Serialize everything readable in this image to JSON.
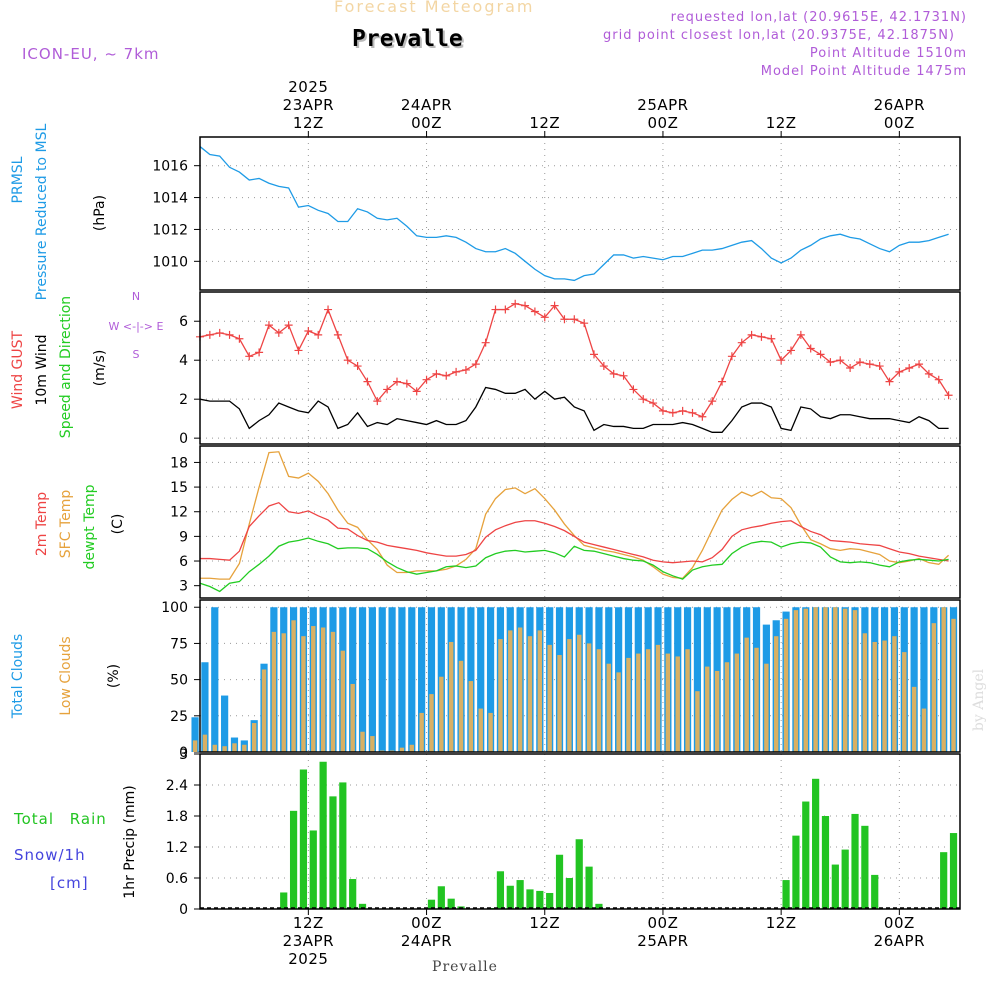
{
  "header": {
    "subtitle": "Forecast Meteogram",
    "title": "Prevalle",
    "model": "ICON-EU, ~ 7km",
    "requested": "requested lon,lat (20.9615E, 42.1731N)",
    "grid_point": "grid point closest lon,lat (20.9375E, 42.1875N)",
    "point_altitude": "Point Altitude 1510m",
    "model_altitude": "Model Point Altitude 1475m"
  },
  "footer": {
    "station": "Prevalle",
    "credit": "by Angel"
  },
  "colors": {
    "pressure": "#1e9be6",
    "gust": "#ee4444",
    "wind": "#000000",
    "temp": "#ee4444",
    "sfc": "#e6a23c",
    "dew": "#22cc22",
    "clouds": "#1e9be6",
    "low": "#d8b064",
    "rain": "#22c422",
    "snow": "#4444dd",
    "meta": "#b05cd8",
    "grid": "#999999"
  },
  "chart_data": [
    {
      "id": "pressure",
      "type": "line",
      "ylabel": [
        "PRMSL",
        "Pressure Reduced to MSL",
        "(hPa)"
      ],
      "ylim": [
        1008.2,
        1017.8
      ],
      "yticks": [
        1010,
        1012,
        1014,
        1016
      ],
      "x_start_hour": 1,
      "series": [
        {
          "values": [
            1017.2,
            1016.7,
            1016.6,
            1015.9,
            1015.6,
            1015.1,
            1015.2,
            1014.9,
            1014.7,
            1014.6,
            1013.4,
            1013.5,
            1013.2,
            1013.0,
            1012.5,
            1012.5,
            1013.3,
            1013.1,
            1012.7,
            1012.6,
            1012.7,
            1012.2,
            1011.6,
            1011.5,
            1011.5,
            1011.6,
            1011.5,
            1011.2,
            1010.8,
            1010.6,
            1010.6,
            1010.8,
            1010.5,
            1010.0,
            1009.5,
            1009.1,
            1008.9,
            1008.9,
            1008.8,
            1009.1,
            1009.2,
            1009.8,
            1010.4,
            1010.4,
            1010.2,
            1010.3,
            1010.2,
            1010.1,
            1010.3,
            1010.3,
            1010.5,
            1010.7,
            1010.7,
            1010.8,
            1011.0,
            1011.2,
            1011.3,
            1010.8,
            1010.2,
            1009.9,
            1010.2,
            1010.7,
            1011.0,
            1011.4,
            1011.6,
            1011.7,
            1011.5,
            1011.4,
            1011.1,
            1010.8,
            1010.6,
            1011.0,
            1011.2,
            1011.2,
            1011.3,
            1011.5,
            1011.7
          ]
        }
      ]
    },
    {
      "id": "wind",
      "type": "line",
      "ylabel": [
        "Wind GUST",
        "10m Wind",
        "Speed and Direction",
        "(m/s)"
      ],
      "compass": [
        "N",
        "W <-|-> E",
        "S"
      ],
      "ylim": [
        -0.3,
        7.5
      ],
      "yticks": [
        0,
        2,
        4,
        6
      ],
      "x_start_hour": 1,
      "series": [
        {
          "name": "Wind GUST",
          "values": [
            5.2,
            5.3,
            5.4,
            5.3,
            5.1,
            4.2,
            4.4,
            5.8,
            5.4,
            5.8,
            4.5,
            5.5,
            5.3,
            6.6,
            5.3,
            4.0,
            3.7,
            2.9,
            1.9,
            2.5,
            2.9,
            2.8,
            2.4,
            3.0,
            3.3,
            3.2,
            3.4,
            3.5,
            3.8,
            4.9,
            6.6,
            6.6,
            6.9,
            6.8,
            6.5,
            6.2,
            6.8,
            6.1,
            6.1,
            5.9,
            4.3,
            3.7,
            3.3,
            3.2,
            2.5,
            2.0,
            1.8,
            1.4,
            1.3,
            1.4,
            1.3,
            1.1,
            1.9,
            2.9,
            4.2,
            4.9,
            5.3,
            5.2,
            5.1,
            4.0,
            4.5,
            5.3,
            4.6,
            4.3,
            3.9,
            4.0,
            3.6,
            3.9,
            3.8,
            3.7,
            2.9,
            3.4,
            3.6,
            3.8,
            3.3,
            3.0,
            2.2
          ]
        },
        {
          "name": "10m Wind",
          "values": [
            2.0,
            1.9,
            1.9,
            1.9,
            1.5,
            0.5,
            0.9,
            1.2,
            1.8,
            1.6,
            1.4,
            1.3,
            1.9,
            1.6,
            0.5,
            0.7,
            1.3,
            0.6,
            0.8,
            0.7,
            1.0,
            0.9,
            0.8,
            0.7,
            0.9,
            0.7,
            0.7,
            0.9,
            1.6,
            2.6,
            2.5,
            2.3,
            2.3,
            2.5,
            2.0,
            2.4,
            2.0,
            2.1,
            1.6,
            1.4,
            0.4,
            0.7,
            0.6,
            0.6,
            0.5,
            0.5,
            0.7,
            0.7,
            0.7,
            0.8,
            0.7,
            0.5,
            0.3,
            0.3,
            0.9,
            1.6,
            1.8,
            1.8,
            1.6,
            0.5,
            0.4,
            1.6,
            1.5,
            1.1,
            1.0,
            1.2,
            1.2,
            1.1,
            1.0,
            1.0,
            1.0,
            0.9,
            0.8,
            1.1,
            0.9,
            0.5,
            0.5
          ]
        }
      ]
    },
    {
      "id": "temperature",
      "type": "line",
      "ylabel": [
        "2m Temp",
        "SFC Temp",
        "dewpt Temp",
        "(C)"
      ],
      "ylim": [
        1.5,
        20.0
      ],
      "yticks": [
        3,
        6,
        9,
        12,
        15,
        18
      ],
      "x_start_hour": 1,
      "series": [
        {
          "name": "2m Temp",
          "values": [
            6.3,
            6.3,
            6.2,
            6.1,
            7.2,
            10.2,
            11.5,
            12.7,
            13.1,
            12.0,
            11.8,
            12.1,
            11.5,
            11.0,
            10.0,
            9.9,
            9.1,
            8.5,
            8.3,
            7.9,
            7.7,
            7.5,
            7.3,
            7.0,
            6.8,
            6.6,
            6.6,
            6.8,
            7.3,
            8.9,
            9.8,
            10.3,
            10.7,
            10.9,
            10.9,
            10.6,
            10.2,
            9.7,
            9.0,
            8.3,
            8.0,
            7.7,
            7.4,
            7.1,
            6.8,
            6.5,
            6.1,
            5.9,
            5.8,
            5.9,
            6.0,
            5.9,
            6.4,
            7.4,
            9.0,
            9.8,
            10.1,
            10.3,
            10.6,
            10.8,
            10.9,
            10.2,
            9.6,
            9.2,
            8.5,
            8.4,
            8.3,
            8.1,
            8.0,
            7.9,
            7.5,
            7.1,
            6.9,
            6.6,
            6.4,
            6.2,
            6.0
          ]
        },
        {
          "name": "SFC Temp",
          "values": [
            3.9,
            3.9,
            3.8,
            3.8,
            5.7,
            10.5,
            15.0,
            19.2,
            19.3,
            16.3,
            16.1,
            16.7,
            15.7,
            14.2,
            12.2,
            10.6,
            10.1,
            8.6,
            7.4,
            5.5,
            4.6,
            4.6,
            4.8,
            4.8,
            4.8,
            5.0,
            5.4,
            6.2,
            7.5,
            11.7,
            13.6,
            14.7,
            14.9,
            14.2,
            14.8,
            13.6,
            12.2,
            10.5,
            9.1,
            7.9,
            7.6,
            7.3,
            7.1,
            6.8,
            6.5,
            6.1,
            5.3,
            4.4,
            4.0,
            3.9,
            5.2,
            7.3,
            9.8,
            12.2,
            13.5,
            14.4,
            13.9,
            14.5,
            13.7,
            13.6,
            12.5,
            10.4,
            8.6,
            8.1,
            7.5,
            7.3,
            7.5,
            7.4,
            7.1,
            6.8,
            6.0,
            5.8,
            6.0,
            6.3,
            5.8,
            5.6,
            6.7
          ]
        },
        {
          "name": "dewpt Temp",
          "values": [
            3.3,
            2.9,
            2.3,
            3.3,
            3.5,
            4.7,
            5.6,
            6.6,
            7.8,
            8.3,
            8.5,
            8.8,
            8.4,
            8.1,
            7.5,
            7.6,
            7.6,
            7.5,
            6.8,
            5.9,
            5.2,
            4.7,
            4.4,
            4.6,
            4.8,
            5.3,
            5.4,
            5.2,
            5.4,
            6.4,
            6.9,
            7.2,
            7.3,
            7.1,
            7.2,
            7.3,
            7.0,
            6.5,
            7.8,
            7.3,
            7.2,
            6.9,
            6.6,
            6.3,
            6.1,
            6.0,
            5.5,
            4.7,
            4.2,
            3.8,
            4.9,
            5.3,
            5.5,
            5.6,
            6.9,
            7.7,
            8.2,
            8.4,
            8.3,
            7.7,
            8.1,
            8.3,
            8.2,
            7.7,
            6.5,
            5.9,
            5.8,
            5.9,
            5.8,
            5.5,
            5.3,
            5.9,
            6.1,
            6.2,
            6.1,
            6.0,
            6.2
          ]
        }
      ]
    },
    {
      "id": "clouds",
      "type": "bar",
      "ylabel": [
        "Total Clouds",
        "Low Clouds",
        "(%)"
      ],
      "ylim": [
        0,
        105
      ],
      "yticks": [
        0,
        25,
        50,
        75,
        100
      ],
      "x_start_hour": 0,
      "series": [
        {
          "name": "Total Clouds",
          "values": [
            24,
            62,
            100,
            39,
            10,
            8,
            22,
            61,
            100,
            100,
            100,
            100,
            100,
            100,
            100,
            100,
            100,
            100,
            100,
            100,
            100,
            100,
            100,
            100,
            100,
            100,
            100,
            100,
            100,
            100,
            100,
            100,
            100,
            100,
            100,
            100,
            100,
            100,
            100,
            100,
            100,
            100,
            100,
            100,
            100,
            100,
            100,
            100,
            100,
            100,
            100,
            100,
            100,
            100,
            100,
            100,
            100,
            100,
            88,
            91,
            97,
            100,
            100,
            100,
            100,
            100,
            100,
            100,
            100,
            100,
            100,
            100,
            100,
            100,
            100,
            100,
            100,
            100
          ]
        },
        {
          "name": "Low Clouds",
          "values": [
            8,
            12,
            5,
            4,
            6,
            5,
            20,
            57,
            83,
            82,
            91,
            80,
            87,
            86,
            83,
            70,
            47,
            14,
            11,
            1,
            1,
            3,
            5,
            27,
            40,
            52,
            76,
            63,
            49,
            30,
            27,
            78,
            84,
            86,
            80,
            84,
            74,
            67,
            78,
            81,
            75,
            71,
            61,
            55,
            65,
            68,
            71,
            74,
            68,
            66,
            71,
            42,
            59,
            56,
            62,
            68,
            79,
            72,
            61,
            80,
            92,
            98,
            99,
            100,
            100,
            100,
            99,
            98,
            82,
            76,
            77,
            80,
            69,
            45,
            30,
            89,
            100,
            92
          ]
        }
      ]
    },
    {
      "id": "precip",
      "type": "bar",
      "ylabel": [
        "1hr Precip (mm)"
      ],
      "legend": [
        "Total Rain",
        "Snow/1h",
        "[cm]"
      ],
      "ylim": [
        0,
        3
      ],
      "yticks": [
        0,
        0.6,
        1.2,
        1.8,
        2.4,
        3
      ],
      "x_start_hour": 0,
      "series": [
        {
          "name": "Total Rain",
          "values": [
            0,
            0,
            0,
            0,
            0,
            0,
            0,
            0,
            0,
            0.32,
            1.9,
            2.7,
            1.52,
            2.85,
            2.18,
            2.45,
            0.58,
            0.1,
            0,
            0,
            0,
            0,
            0,
            0,
            0.18,
            0.44,
            0.2,
            0.05,
            0,
            0,
            0.02,
            0.73,
            0.45,
            0.56,
            0.38,
            0.35,
            0.31,
            1.05,
            0.6,
            1.35,
            0.82,
            0.1,
            0,
            0,
            0,
            0,
            0,
            0,
            0,
            0,
            0,
            0,
            0,
            0,
            0,
            0,
            0,
            0,
            0,
            0,
            0.56,
            1.42,
            2.08,
            2.52,
            1.8,
            0.86,
            1.15,
            1.84,
            1.61,
            0.66,
            0,
            0,
            0,
            0,
            0,
            0,
            1.1,
            1.47
          ]
        }
      ]
    }
  ],
  "time_axis": {
    "top": [
      {
        "hour": 12,
        "lines": [
          "2025",
          "23APR",
          "12Z"
        ]
      },
      {
        "hour": 24,
        "lines": [
          "24APR",
          "00Z"
        ]
      },
      {
        "hour": 36,
        "lines": [
          "12Z"
        ]
      },
      {
        "hour": 48,
        "lines": [
          "25APR",
          "00Z"
        ]
      },
      {
        "hour": 60,
        "lines": [
          "12Z"
        ]
      },
      {
        "hour": 72,
        "lines": [
          "26APR",
          "00Z"
        ]
      }
    ],
    "bottom": [
      {
        "hour": 12,
        "lines": [
          "12Z",
          "23APR",
          "2025"
        ]
      },
      {
        "hour": 24,
        "lines": [
          "00Z",
          "24APR"
        ]
      },
      {
        "hour": 36,
        "lines": [
          "12Z"
        ]
      },
      {
        "hour": 48,
        "lines": [
          "00Z",
          "25APR"
        ]
      },
      {
        "hour": 60,
        "lines": [
          "12Z"
        ]
      },
      {
        "hour": 72,
        "lines": [
          "00Z",
          "26APR"
        ]
      }
    ]
  }
}
